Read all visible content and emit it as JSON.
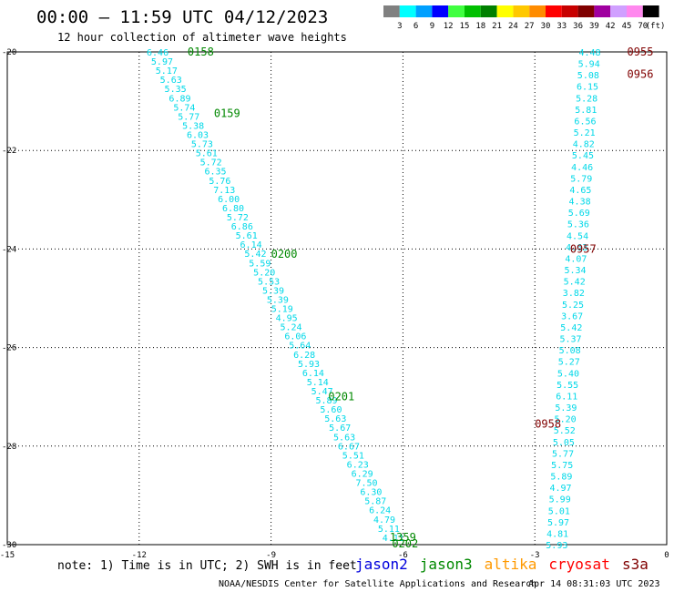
{
  "header": {
    "title": "00:00 – 11:59 UTC 04/12/2023",
    "subtitle": "12 hour collection of altimeter wave heights"
  },
  "legend": {
    "unit": "(ft)",
    "bins": [
      {
        "label": "3",
        "color": "#808080"
      },
      {
        "label": "6",
        "color": "#00ffff"
      },
      {
        "label": "9",
        "color": "#00a0ff"
      },
      {
        "label": "12",
        "color": "#0000ff"
      },
      {
        "label": "15",
        "color": "#40ff40"
      },
      {
        "label": "18",
        "color": "#00c000"
      },
      {
        "label": "21",
        "color": "#008000"
      },
      {
        "label": "24",
        "color": "#ffff00"
      },
      {
        "label": "27",
        "color": "#ffc800"
      },
      {
        "label": "30",
        "color": "#ff8c00"
      },
      {
        "label": "33",
        "color": "#ff0000"
      },
      {
        "label": "36",
        "color": "#c80000"
      },
      {
        "label": "39",
        "color": "#800000"
      },
      {
        "label": "42",
        "color": "#a000a0"
      },
      {
        "label": "45",
        "color": "#d0a0ff"
      },
      {
        "label": "70",
        "color": "#ff88ee"
      },
      {
        "label": "",
        "color": "#000000"
      }
    ]
  },
  "footer": {
    "note": "note:  1) Time is in UTC;  2) SWH is in feet",
    "satellites": [
      {
        "name": "jason2",
        "color": "#0000dd"
      },
      {
        "name": "jason3",
        "color": "#008800"
      },
      {
        "name": "altika",
        "color": "#ff9900"
      },
      {
        "name": "cryosat",
        "color": "#ff0000"
      },
      {
        "name": "s3a",
        "color": "#800000"
      }
    ],
    "credit": "NOAA/NESDIS Center for Satellite Applications and Research",
    "timestamp": "Apr 14 08:31:03 UTC 2023"
  },
  "chart_data": {
    "type": "scatter",
    "xlim": [
      -15,
      0
    ],
    "ylim": [
      -30,
      -20
    ],
    "x_ticks": [
      {
        "v": -15,
        "label": "-15"
      },
      {
        "v": -12,
        "label": "-12"
      },
      {
        "v": -9,
        "label": "-9"
      },
      {
        "v": -6,
        "label": "-6"
      },
      {
        "v": -3,
        "label": "-3"
      },
      {
        "v": 0,
        "label": "0"
      }
    ],
    "y_ticks": [
      {
        "v": -20,
        "label": "-20"
      },
      {
        "v": -22,
        "label": "-22"
      },
      {
        "v": -24,
        "label": "-24"
      },
      {
        "v": -26,
        "label": "-26"
      },
      {
        "v": -28,
        "label": "-28"
      },
      {
        "v": -30,
        "label": "-30"
      }
    ],
    "grid": true,
    "point_color": "#00d8e8",
    "tracks": [
      {
        "satellite": "jason3",
        "start": [
          -11.58,
          -20.0
        ],
        "end": [
          -6.22,
          -29.85
        ],
        "values": [
          "6.46",
          "5.97",
          "5.17",
          "5.63",
          "5.35",
          "6.89",
          "5.74",
          "5.77",
          "5.38",
          "6.03",
          "5.73",
          "5.61",
          "5.72",
          "6.35",
          "5.76",
          "7.13",
          "6.00",
          "6.80",
          "5.72",
          "6.86",
          "5.61",
          "6.14",
          "5.42",
          "5.59",
          "5.20",
          "5.53",
          "5.39",
          "5.39",
          "5.19",
          "4.95",
          "5.24",
          "6.06",
          "5.64",
          "6.28",
          "5.93",
          "6.14",
          "5.14",
          "5.47",
          "5.89",
          "5.60",
          "5.63",
          "5.67",
          "5.63",
          "6.67",
          "5.51",
          "6.23",
          "6.29",
          "7.50",
          "6.30",
          "5.87",
          "6.24",
          "4.79",
          "5.11",
          "4.11"
        ],
        "time_labels": [
          {
            "x": -10.9,
            "y": -20.0,
            "label": "0158"
          },
          {
            "x": -10.3,
            "y": -21.25,
            "label": "0159"
          },
          {
            "x": -9.0,
            "y": -24.1,
            "label": "0200"
          },
          {
            "x": -7.7,
            "y": -27.0,
            "label": "0201"
          },
          {
            "x": -6.3,
            "y": -29.85,
            "label": "1359"
          },
          {
            "x": -6.25,
            "y": -29.98,
            "label": "0202"
          }
        ]
      },
      {
        "satellite": "s3a",
        "start": [
          -2.5,
          -30.0
        ],
        "end": [
          -1.75,
          -20.0
        ],
        "values": [
          "5.93",
          "4.81",
          "5.97",
          "5.01",
          "5.99",
          "4.97",
          "5.89",
          "5.75",
          "5.77",
          "5.05",
          "5.52",
          "5.20",
          "5.39",
          "6.11",
          "5.55",
          "5.40",
          "5.27",
          "5.08",
          "5.37",
          "5.42",
          "3.67",
          "5.25",
          "3.82",
          "5.42",
          "5.34",
          "4.07",
          "4.63",
          "4.54",
          "5.36",
          "5.69",
          "4.38",
          "4.65",
          "5.79",
          "4.46",
          "5.45",
          "4.82",
          "5.21",
          "6.56",
          "5.81",
          "5.28",
          "6.15",
          "5.08",
          "5.94",
          "4.48"
        ],
        "time_labels": [
          {
            "x": -0.9,
            "y": -20.0,
            "label": "0955"
          },
          {
            "x": -0.9,
            "y": -20.45,
            "label": "0956"
          },
          {
            "x": -2.2,
            "y": -24.0,
            "label": "0957"
          },
          {
            "x": -3.0,
            "y": -27.55,
            "label": "0958"
          }
        ]
      }
    ]
  }
}
